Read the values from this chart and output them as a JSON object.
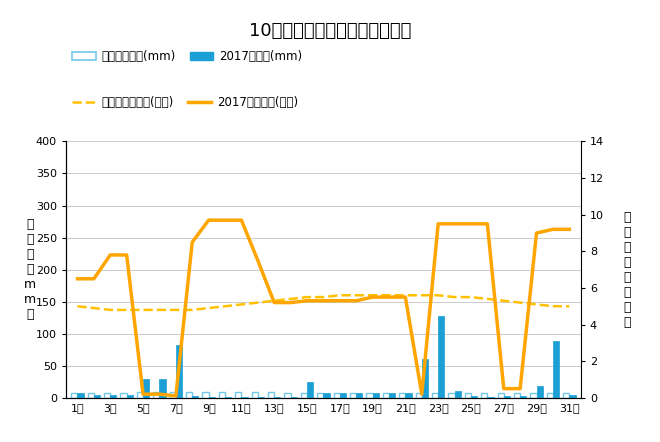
{
  "title": "10月降水量・日照時間（日別）",
  "days": [
    1,
    2,
    3,
    4,
    5,
    6,
    7,
    8,
    9,
    10,
    11,
    12,
    13,
    14,
    15,
    16,
    17,
    18,
    19,
    20,
    21,
    22,
    23,
    24,
    25,
    26,
    27,
    28,
    29,
    30,
    31
  ],
  "day_labels": [
    "1日",
    "3日",
    "5日",
    "7日",
    "9日",
    "11日",
    "13日",
    "15日",
    "17日",
    "19日",
    "21日",
    "23日",
    "25日",
    "27日",
    "29日",
    "31日"
  ],
  "day_label_ticks": [
    1,
    3,
    5,
    7,
    9,
    11,
    13,
    15,
    17,
    19,
    21,
    23,
    25,
    27,
    29,
    31
  ],
  "precip_avg": [
    8,
    8,
    8,
    8,
    9,
    9,
    9,
    9,
    9,
    9,
    9,
    9,
    9,
    8,
    8,
    8,
    8,
    8,
    8,
    8,
    8,
    8,
    8,
    8,
    8,
    8,
    8,
    7,
    7,
    7,
    7
  ],
  "precip_2017": [
    8,
    5,
    5,
    5,
    30,
    30,
    82,
    3,
    1,
    1,
    2,
    2,
    2,
    2,
    25,
    8,
    8,
    8,
    8,
    8,
    8,
    60,
    127,
    10,
    3,
    1,
    3,
    3,
    18,
    88,
    5
  ],
  "sunshine_avg": [
    5.0,
    4.9,
    4.8,
    4.8,
    4.8,
    4.8,
    4.8,
    4.8,
    4.9,
    5.0,
    5.1,
    5.2,
    5.3,
    5.4,
    5.5,
    5.5,
    5.6,
    5.6,
    5.6,
    5.6,
    5.6,
    5.6,
    5.6,
    5.5,
    5.5,
    5.4,
    5.3,
    5.2,
    5.1,
    5.0,
    5.0
  ],
  "sunshine_2017": [
    6.5,
    6.5,
    7.8,
    7.8,
    0.2,
    0.2,
    0.1,
    8.5,
    9.7,
    9.7,
    9.7,
    7.5,
    5.2,
    5.2,
    5.3,
    5.3,
    5.3,
    5.3,
    5.5,
    5.5,
    5.5,
    0.2,
    9.5,
    9.5,
    9.5,
    9.5,
    0.5,
    0.5,
    9.0,
    9.2,
    9.2
  ],
  "ylabel_left": "降\n水\n量\n（\nm\nm\n）",
  "ylabel_right": "日\n照\n時\n間\n（\n時\n間\n）",
  "ylim_left": [
    0,
    400
  ],
  "ylim_right": [
    0,
    14
  ],
  "yticks_left": [
    0,
    50,
    100,
    150,
    200,
    250,
    300,
    350,
    400
  ],
  "yticks_right": [
    0,
    2,
    4,
    6,
    8,
    10,
    12,
    14
  ],
  "bar_avg_color": "#70C8E8",
  "bar_2017_color": "#1B9FD4",
  "line_avg_color": "#FFC000",
  "line_2017_color": "#FFA500",
  "legend1_label": "降水量平年値(mm)",
  "legend2_label": "2017降水量(mm)",
  "legend3_label": "日照時間平年値(時間)",
  "legend4_label": "2017日照時間(時間)",
  "bg_color": "#FFFFFF",
  "grid_color": "#CCCCCC"
}
